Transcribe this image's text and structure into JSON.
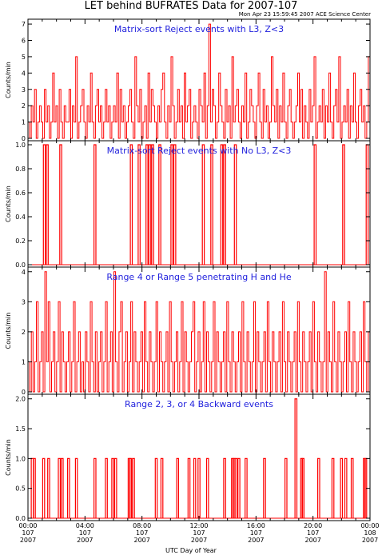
{
  "header": {
    "title": "LET behind BUFRATES Data for 2007-107",
    "timestamp": "Mon Apr 23 15:59:45 2007 ACE Science Center"
  },
  "x_axis_label": "UTC Day of Year",
  "x_ticks": [
    {
      "time": "00:00",
      "doy": "107",
      "year": "2007"
    },
    {
      "time": "04:00",
      "doy": "107",
      "year": "2007"
    },
    {
      "time": "08:00",
      "doy": "107",
      "year": "2007"
    },
    {
      "time": "12:00",
      "doy": "107",
      "year": "2007"
    },
    {
      "time": "16:00",
      "doy": "107",
      "year": "2007"
    },
    {
      "time": "20:00",
      "doy": "107",
      "year": "2007"
    },
    {
      "time": "00:00",
      "doy": "108",
      "year": "2007"
    }
  ],
  "colors": {
    "data": "#ff0000",
    "panel_title": "#2222dd",
    "axes": "#000000"
  },
  "chart_data": [
    {
      "type": "line",
      "title": "Matrix-sort Reject events with L3, Z<3",
      "ylabel": "Counts/min",
      "ylim": [
        0,
        7.2
      ],
      "yticks": [
        0,
        1,
        2,
        3,
        4,
        5,
        6,
        7
      ],
      "xrange_hours": [
        0,
        24
      ],
      "series": [
        {
          "values": [
            1,
            0,
            2,
            1,
            3,
            0,
            1,
            2,
            1,
            0,
            3,
            1,
            2,
            0,
            1,
            4,
            1,
            2,
            0,
            3,
            1,
            0,
            2,
            1,
            1,
            3,
            0,
            2,
            1,
            5,
            0,
            1,
            2,
            3,
            1,
            0,
            2,
            1,
            4,
            1,
            0,
            2,
            3,
            1,
            2,
            0,
            1,
            3,
            1,
            2,
            0,
            1,
            2,
            1,
            4,
            0,
            3,
            1,
            2,
            0,
            1,
            2,
            3,
            1,
            0,
            5,
            2,
            1,
            3,
            0,
            1,
            2,
            0,
            4,
            1,
            3,
            2,
            1,
            0,
            2,
            1,
            3,
            4,
            1,
            0,
            2,
            1,
            5,
            2,
            0,
            1,
            3,
            1,
            2,
            0,
            4,
            1,
            2,
            3,
            0,
            1,
            2,
            1,
            0,
            3,
            2,
            1,
            4,
            0,
            2,
            7,
            1,
            3,
            2,
            0,
            1,
            4,
            2,
            1,
            0,
            3,
            1,
            2,
            0,
            5,
            1,
            2,
            3,
            1,
            0,
            2,
            1,
            4,
            0,
            1,
            3,
            2,
            1,
            0,
            2,
            4,
            1,
            0,
            3,
            1,
            2,
            0,
            1,
            5,
            2,
            1,
            3,
            0,
            2,
            1,
            4,
            1,
            0,
            2,
            3,
            1,
            0,
            1,
            2,
            4,
            1,
            3,
            0,
            2,
            1,
            0,
            3,
            1,
            2,
            5,
            0,
            1,
            2,
            1,
            3,
            0,
            2,
            1,
            4,
            1,
            0,
            2,
            3,
            1,
            5,
            0,
            1,
            2,
            1,
            3,
            0,
            2,
            1,
            4,
            1,
            0,
            2,
            3,
            1,
            2,
            0,
            1,
            5
          ]
        }
      ]
    },
    {
      "type": "line",
      "title": "Matrix-sort Reject events with No L3, Z<3",
      "ylabel": "Counts/min",
      "ylim": [
        0,
        1.02
      ],
      "yticks": [
        0,
        0.2,
        0.4,
        0.6,
        0.8,
        1.0
      ],
      "xrange_hours": [
        0,
        24
      ],
      "series": [
        {
          "spike_hours": [
            1.15,
            1.35,
            2.3,
            4.7,
            7.25,
            7.8,
            8.35,
            8.55,
            8.75,
            9.25,
            10.1,
            10.3,
            12.3,
            12.9,
            13.6,
            13.8,
            14.55,
            20.15,
            22.15,
            23.8
          ]
        }
      ]
    },
    {
      "type": "line",
      "title": "Range 4 or Range 5 penetrating H and He",
      "ylabel": "Counts/min",
      "ylim": [
        0,
        4.1
      ],
      "yticks": [
        0,
        1,
        2,
        3,
        4
      ],
      "xrange_hours": [
        0,
        24
      ],
      "series": [
        {
          "values": [
            1,
            0,
            2,
            0,
            1,
            3,
            0,
            1,
            2,
            0,
            4,
            1,
            3,
            0,
            1,
            2,
            0,
            1,
            3,
            0,
            2,
            1,
            0,
            1,
            2,
            0,
            1,
            3,
            0,
            1,
            2,
            0,
            1,
            0,
            2,
            1,
            0,
            3,
            1,
            0,
            2,
            0,
            1,
            2,
            0,
            1,
            3,
            0,
            1,
            2,
            0,
            4,
            1,
            0,
            2,
            3,
            0,
            1,
            2,
            0,
            1,
            3,
            0,
            2,
            1,
            0,
            1,
            2,
            0,
            3,
            1,
            0,
            2,
            1,
            0,
            1,
            3,
            0,
            2,
            1,
            0,
            1,
            2,
            0,
            3,
            1,
            0,
            1,
            2,
            0,
            1,
            3,
            0,
            2,
            1,
            0,
            1,
            2,
            3,
            0,
            1,
            2,
            0,
            1,
            3,
            0,
            2,
            1,
            0,
            1,
            3,
            0,
            2,
            1,
            0,
            1,
            2,
            0,
            3,
            1,
            0,
            2,
            1,
            0,
            1,
            2,
            0,
            3,
            1,
            0,
            2,
            1,
            0,
            1,
            3,
            0,
            2,
            1,
            0,
            1,
            2,
            0,
            3,
            1,
            0,
            2,
            1,
            0,
            1,
            2,
            0,
            3,
            1,
            0,
            2,
            1,
            0,
            1,
            2,
            0,
            3,
            1,
            0,
            2,
            1,
            0,
            1,
            2,
            0,
            3,
            1,
            0,
            2,
            1,
            0,
            1,
            4,
            0,
            2,
            1,
            0,
            3,
            1,
            0,
            2,
            1,
            0,
            1,
            2,
            0,
            3,
            1,
            0,
            2,
            1,
            0,
            1,
            2,
            0,
            3,
            1,
            0,
            2
          ]
        }
      ]
    },
    {
      "type": "line",
      "title": "Range 2, 3, or 4 Backward events",
      "ylabel": "Counts/min",
      "ylim": [
        0,
        2.05
      ],
      "yticks": [
        0,
        0.5,
        1.0,
        1.5,
        2.0
      ],
      "xrange_hours": [
        0,
        24
      ],
      "series": [
        {
          "spikes": [
            [
              0.3,
              1
            ],
            [
              0.45,
              1
            ],
            [
              1.1,
              1
            ],
            [
              1.45,
              1
            ],
            [
              2.2,
              1
            ],
            [
              2.4,
              1
            ],
            [
              2.85,
              1
            ],
            [
              3.4,
              1
            ],
            [
              4.7,
              1
            ],
            [
              5.5,
              1
            ],
            [
              5.95,
              1
            ],
            [
              6.15,
              1
            ],
            [
              7.1,
              1
            ],
            [
              7.2,
              1
            ],
            [
              7.4,
              1
            ],
            [
              9.0,
              1
            ],
            [
              9.4,
              1
            ],
            [
              10.5,
              1
            ],
            [
              11.3,
              1
            ],
            [
              11.7,
              1
            ],
            [
              12.0,
              1
            ],
            [
              12.6,
              1
            ],
            [
              13.8,
              1
            ],
            [
              14.35,
              1
            ],
            [
              14.45,
              1
            ],
            [
              14.6,
              1
            ],
            [
              14.8,
              1
            ],
            [
              15.3,
              1
            ],
            [
              16.6,
              1
            ],
            [
              18.1,
              1
            ],
            [
              18.8,
              2
            ],
            [
              19.2,
              1
            ],
            [
              19.3,
              1
            ],
            [
              20.4,
              1
            ],
            [
              21.4,
              1
            ],
            [
              22.0,
              1
            ],
            [
              22.3,
              1
            ],
            [
              22.75,
              1
            ],
            [
              23.6,
              1
            ],
            [
              23.7,
              1
            ]
          ]
        }
      ]
    }
  ]
}
